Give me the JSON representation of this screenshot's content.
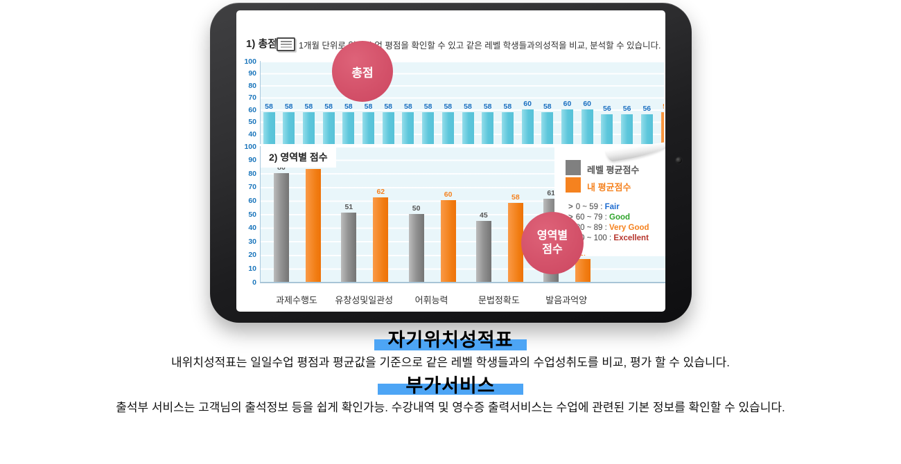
{
  "header": {
    "label": "1) 총점",
    "icon": "notebook-icon",
    "description": "1개월 단위로 일일 수업 평점을 확인할 수 있고 같은 레벨 학생들과의성적을 비교, 분석할 수 있습니다."
  },
  "badges": {
    "total": {
      "text": "총점"
    },
    "section": {
      "line1": "영역별",
      "line2": "점수"
    }
  },
  "chart_data": [
    {
      "type": "bar",
      "name": "총점 일일 수업 평점",
      "ylim": [
        0,
        100
      ],
      "y_ticks": [
        100,
        90,
        80,
        70,
        60,
        50,
        40
      ],
      "values": [
        58,
        58,
        58,
        58,
        58,
        58,
        58,
        58,
        58,
        58,
        58,
        58,
        58,
        60,
        58,
        60,
        60,
        56,
        56,
        56,
        58
      ],
      "bar_color": "#5cc6db",
      "highlight_last_index": 20,
      "highlight_color": "#f5821f",
      "value_label_color": "#1a6fc0",
      "grid": true
    },
    {
      "type": "grouped-bar",
      "section_label": "2) 영역별 점수",
      "ylim": [
        0,
        100
      ],
      "y_ticks": [
        100,
        90,
        80,
        70,
        60,
        50,
        40,
        30,
        20,
        10,
        0
      ],
      "categories": [
        "과제수행도",
        "유창성및일관성",
        "어휘능력",
        "문법정확도",
        "발음과억양"
      ],
      "series": [
        {
          "name": "레벨 평균점수",
          "color": "#808080",
          "values": [
            80,
            51,
            50,
            45,
            61
          ]
        },
        {
          "name": "내 평균점수",
          "color": "#f5821f",
          "values": [
            83,
            62,
            60,
            58,
            17
          ]
        }
      ],
      "legend_bullet": ">",
      "legend_ranges": [
        {
          "range": "0 ~  59",
          "label": "Fair",
          "color": "#1e6cd0"
        },
        {
          "range": "60 ~  79",
          "label": "Good",
          "color": "#2fa42b"
        },
        {
          "range": "80 ~  89",
          "label": "Very Good",
          "color": "#f5821f"
        },
        {
          "range": "90 ~ 100",
          "label": "Excellent",
          "color": "#b5342c"
        }
      ],
      "grid": true,
      "legend_position": "right"
    }
  ],
  "footer": {
    "sections": [
      {
        "title": "자기위치성적표",
        "description": "내위치성적표는 일일수업 평점과 평균값을 기준으로 같은 레벨 학생들과의 수업성취도를 비교, 평가 할 수 있습니다."
      },
      {
        "title": "부가서비스",
        "description": "출석부 서비스는 고객님의 출석정보 등을 쉽게 확인가능. 수강내역 및 영수증 출력서비스는 수업에 관련된 기본 정보를 확인할 수 있습니다."
      }
    ]
  },
  "colors": {
    "title_highlight": "#4da5f5",
    "badge": "#d4556c",
    "chart_background": "#e9f6fa",
    "cyan_bar": "#5cc6db",
    "orange_bar": "#f5821f",
    "gray_bar": "#808080"
  }
}
